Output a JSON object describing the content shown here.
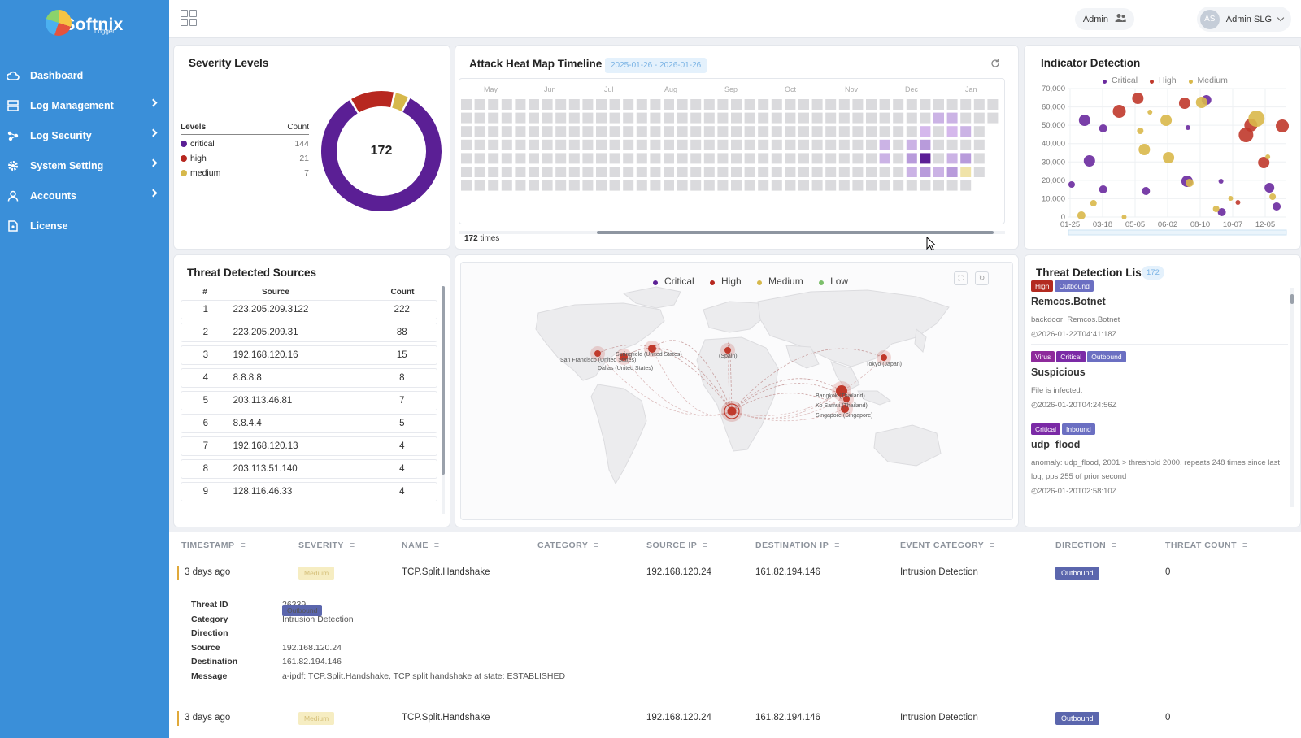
{
  "brand": {
    "name": "Softnix",
    "sub": "Logger"
  },
  "sidebar": {
    "items": [
      {
        "label": "Dashboard",
        "icon": "cloud-icon",
        "chevron": false
      },
      {
        "label": "Log Management",
        "icon": "server-icon",
        "chevron": true
      },
      {
        "label": "Log Security",
        "icon": "shield-network-icon",
        "chevron": true
      },
      {
        "label": "System Setting",
        "icon": "gear-icon",
        "chevron": true
      },
      {
        "label": "Accounts",
        "icon": "user-icon",
        "chevron": true
      },
      {
        "label": "License",
        "icon": "document-icon",
        "chevron": false
      }
    ]
  },
  "topbar": {
    "admin_label": "Admin",
    "avatar_initials": "AS",
    "user_name": "Admin SLG"
  },
  "severity": {
    "title": "Severity Levels",
    "col_levels": "Levels",
    "col_count": "Count",
    "total": "172",
    "rows": [
      {
        "label": "critical",
        "count": "144",
        "color": "#5b1f95"
      },
      {
        "label": "high",
        "count": "21",
        "color": "#b7271f"
      },
      {
        "label": "medium",
        "count": "7",
        "color": "#d6b84b"
      }
    ]
  },
  "heatmap": {
    "title": "Attack Heat Map Timeline",
    "date_range": "2025-01-26 - 2026-01-26",
    "months": [
      "May",
      "Jun",
      "Jul",
      "Aug",
      "Sep",
      "Oct",
      "Nov",
      "Dec",
      "Jan"
    ],
    "total_count": "172",
    "total_suffix": "times"
  },
  "indicator": {
    "title": "Indicator Detection",
    "legend": [
      {
        "label": "Critical",
        "color": "#6a2a9e"
      },
      {
        "label": "High",
        "color": "#c0392b"
      },
      {
        "label": "Medium",
        "color": "#d9b84a"
      }
    ],
    "y_ticks": [
      "70,000",
      "60,000",
      "50,000",
      "40,000",
      "30,000",
      "20,000",
      "10,000",
      "0"
    ],
    "x_ticks": [
      "01-25",
      "03-18",
      "05-05",
      "06-02",
      "08-10",
      "10-07",
      "12-05"
    ]
  },
  "sources": {
    "title": "Threat Detected Sources",
    "col_num": "#",
    "col_source": "Source",
    "col_count": "Count",
    "rows": [
      {
        "n": "1",
        "source": "223.205.209.3122",
        "count": "222"
      },
      {
        "n": "2",
        "source": "223.205.209.31",
        "count": "88"
      },
      {
        "n": "3",
        "source": "192.168.120.16",
        "count": "15"
      },
      {
        "n": "4",
        "source": "8.8.8.8",
        "count": "8"
      },
      {
        "n": "5",
        "source": "203.113.46.81",
        "count": "7"
      },
      {
        "n": "6",
        "source": "8.8.4.4",
        "count": "5"
      },
      {
        "n": "7",
        "source": "192.168.120.13",
        "count": "4"
      },
      {
        "n": "8",
        "source": "203.113.51.140",
        "count": "4"
      },
      {
        "n": "9",
        "source": "128.116.46.33",
        "count": "4"
      }
    ]
  },
  "map": {
    "legend": [
      {
        "label": "Critical",
        "color": "#5b1f95"
      },
      {
        "label": "High",
        "color": "#b7271f"
      },
      {
        "label": "Medium",
        "color": "#d6b84b"
      },
      {
        "label": "Low",
        "color": "#7cbf6b"
      }
    ],
    "places": [
      "San Francisco (United States)",
      "Springfield (United States)",
      "Dallas (United States)",
      "(Spain)",
      "Tokyo (Japan)",
      "Bangkok (Thailand)",
      "Ko Samui (Thailand)",
      "Singapore (Singapore)"
    ]
  },
  "threat_list": {
    "title": "Threat Detection List",
    "count": "172",
    "items": [
      {
        "tags": [
          {
            "label": "High",
            "cls": "t-high"
          },
          {
            "label": "Outbound",
            "cls": "t-out"
          }
        ],
        "name": "Remcos.Botnet",
        "desc": "backdoor: Remcos.Botnet",
        "time": "◴2026-01-22T04:41:18Z"
      },
      {
        "tags": [
          {
            "label": "Virus",
            "cls": "t-virus"
          },
          {
            "label": "Critical",
            "cls": "t-crit"
          },
          {
            "label": "Outbound",
            "cls": "t-out"
          }
        ],
        "name": "Suspicious",
        "desc": "File is infected.",
        "time": "◴2026-01-20T04:24:56Z"
      },
      {
        "tags": [
          {
            "label": "Critical",
            "cls": "t-crit"
          },
          {
            "label": "Inbound",
            "cls": "t-in"
          }
        ],
        "name": "udp_flood",
        "desc": "anomaly: udp_flood, 2001 > threshold 2000, repeats 248 times since last log, pps 255 of prior second",
        "time": "◴2026-01-20T02:58:10Z"
      }
    ]
  },
  "events": {
    "headers": {
      "timestamp": "TIMESTAMP",
      "severity": "SEVERITY",
      "name": "NAME",
      "category": "CATEGORY",
      "source_ip": "SOURCE IP",
      "destination_ip": "DESTINATION IP",
      "event_category": "EVENT CATEGORY",
      "direction": "DIRECTION",
      "threat_count": "THREAT COUNT"
    },
    "rows": [
      {
        "timestamp": "3 days ago",
        "severity": "Medium",
        "name": "TCP.Split.Handshake",
        "category": "",
        "source_ip": "192.168.120.24",
        "destination_ip": "161.82.194.146",
        "event_category": "Intrusion Detection",
        "direction": "Outbound",
        "threat_count": "0"
      },
      {
        "timestamp": "3 days ago",
        "severity": "Medium",
        "name": "TCP.Split.Handshake",
        "category": "",
        "source_ip": "192.168.120.24",
        "destination_ip": "161.82.194.146",
        "event_category": "Intrusion Detection",
        "direction": "Outbound",
        "threat_count": "0"
      }
    ],
    "detail": {
      "threat_id_label": "Threat ID",
      "threat_id": "26339",
      "category_label": "Category",
      "category": "Intrusion Detection",
      "direction_label": "Direction",
      "direction": "Outbound",
      "source_label": "Source",
      "source": "192.168.120.24",
      "destination_label": "Destination",
      "destination": "161.82.194.146",
      "message_label": "Message",
      "message": "a-ipdf: TCP.Split.Handshake, TCP split handshake at state: ESTABLISHED"
    }
  }
}
